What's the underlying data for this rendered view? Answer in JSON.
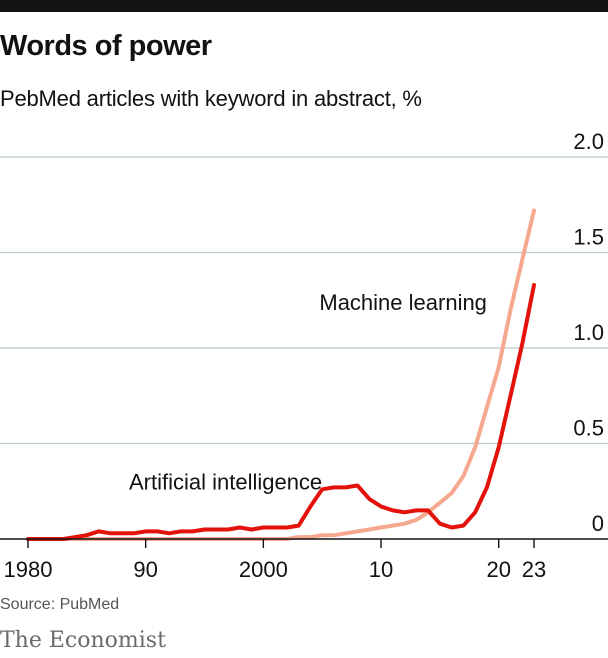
{
  "header": {
    "title": "Words of power",
    "subtitle": "PebMed articles with keyword in abstract, %"
  },
  "footer": {
    "source": "Source: PubMed",
    "brand": "The Economist"
  },
  "chart_data": {
    "type": "line",
    "title": "Words of power",
    "subtitle": "PebMed articles with keyword in abstract, %",
    "xlim": [
      1980,
      2023
    ],
    "ylim": [
      0,
      2.0
    ],
    "x_ticks": [
      1980,
      1990,
      2000,
      2010,
      2020,
      2023
    ],
    "x_tick_labels": [
      "1980",
      "90",
      "2000",
      "10",
      "20",
      "23"
    ],
    "y_ticks": [
      0,
      0.5,
      1.0,
      1.5,
      2.0
    ],
    "y_tick_labels": [
      "0",
      "0.5",
      "1.0",
      "1.5",
      "2.0"
    ],
    "grid": "horizontal",
    "x": [
      1980,
      1981,
      1982,
      1983,
      1984,
      1985,
      1986,
      1987,
      1988,
      1989,
      1990,
      1991,
      1992,
      1993,
      1994,
      1995,
      1996,
      1997,
      1998,
      1999,
      2000,
      2001,
      2002,
      2003,
      2004,
      2005,
      2006,
      2007,
      2008,
      2009,
      2010,
      2011,
      2012,
      2013,
      2014,
      2015,
      2016,
      2017,
      2018,
      2019,
      2020,
      2021,
      2022,
      2023
    ],
    "series": [
      {
        "name": "Artificial intelligence",
        "color": "#e3120b",
        "label_pos": {
          "x": 2005,
          "y": 0.26
        },
        "values": [
          0.0,
          0.0,
          0.0,
          0.0,
          0.01,
          0.02,
          0.04,
          0.03,
          0.03,
          0.03,
          0.04,
          0.04,
          0.03,
          0.04,
          0.04,
          0.05,
          0.05,
          0.05,
          0.06,
          0.05,
          0.06,
          0.06,
          0.06,
          0.07,
          0.17,
          0.26,
          0.27,
          0.27,
          0.28,
          0.21,
          0.17,
          0.15,
          0.14,
          0.15,
          0.15,
          0.08,
          0.06,
          0.07,
          0.14,
          0.27,
          0.48,
          0.75,
          1.02,
          1.33
        ]
      },
      {
        "name": "Machine learning",
        "color": "#f6a88e",
        "label_pos": {
          "x": 2019,
          "y": 1.2
        },
        "values": [
          0,
          0,
          0,
          0,
          0,
          0,
          0,
          0,
          0,
          0,
          0,
          0,
          0,
          0,
          0,
          0,
          0,
          0,
          0,
          0,
          0,
          0,
          0,
          0.01,
          0.01,
          0.02,
          0.02,
          0.03,
          0.04,
          0.05,
          0.06,
          0.07,
          0.08,
          0.1,
          0.14,
          0.19,
          0.24,
          0.33,
          0.48,
          0.69,
          0.9,
          1.2,
          1.46,
          1.72
        ]
      }
    ]
  }
}
